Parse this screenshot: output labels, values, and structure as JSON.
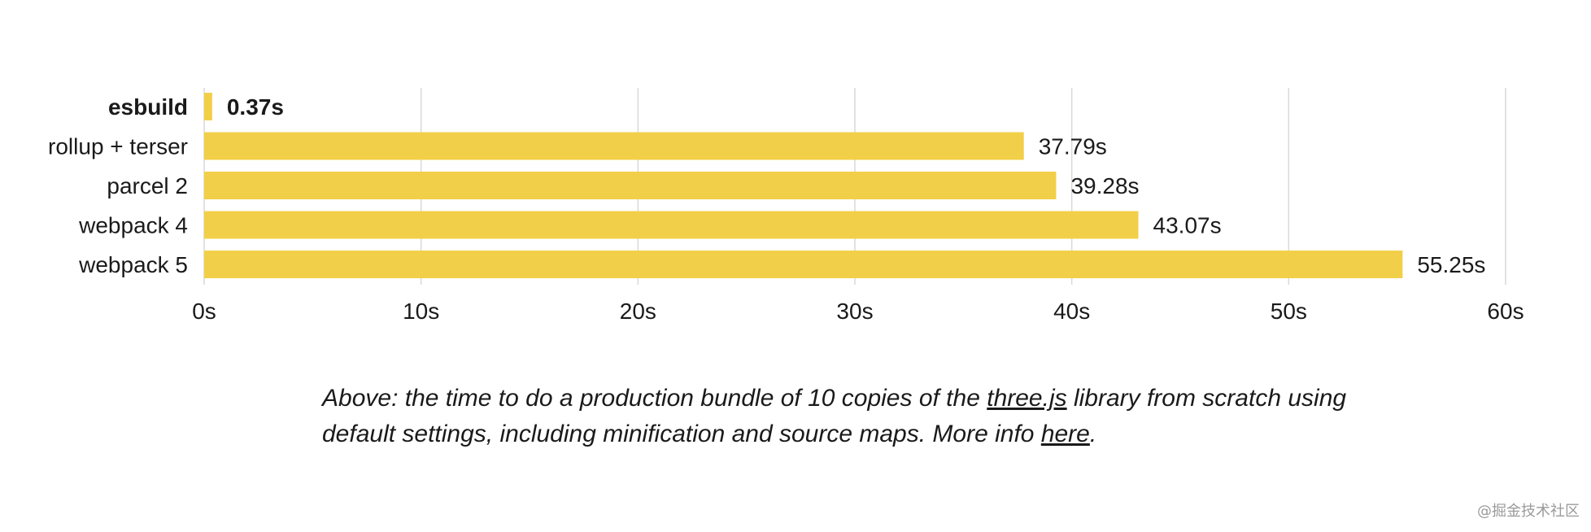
{
  "chart_data": {
    "type": "bar",
    "orientation": "horizontal",
    "categories": [
      "esbuild",
      "rollup + terser",
      "parcel 2",
      "webpack 4",
      "webpack 5"
    ],
    "values": [
      0.37,
      37.79,
      39.28,
      43.07,
      55.25
    ],
    "value_labels": [
      "0.37s",
      "37.79s",
      "39.28s",
      "43.07s",
      "55.25s"
    ],
    "highlight": "esbuild",
    "xlim": [
      0,
      60
    ],
    "x_ticks": [
      0,
      10,
      20,
      30,
      40,
      50,
      60
    ],
    "x_tick_labels": [
      "0s",
      "10s",
      "20s",
      "30s",
      "40s",
      "50s",
      "60s"
    ],
    "grid": "vertical",
    "bar_color": "#f2cf48",
    "title": "",
    "xlabel": "",
    "ylabel": ""
  },
  "caption": {
    "before_link1": "Above: the time to do a production bundle of 10 copies of the ",
    "link1": "three.js",
    "between_links": " library from scratch using default settings, including minification and source maps. More info ",
    "link2": "here",
    "after_link2": "."
  },
  "watermark": "@掘金技术社区"
}
